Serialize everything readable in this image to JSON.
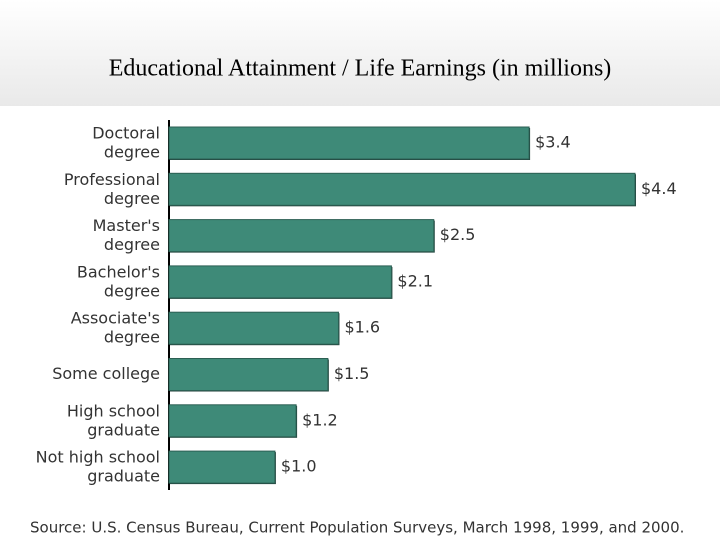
{
  "chart_data": {
    "type": "bar",
    "orientation": "horizontal",
    "title": "Educational Attainment / Life Earnings (in millions)",
    "categories": [
      "Doctoral\ndegree",
      "Professional\ndegree",
      "Master's\ndegree",
      "Bachelor's\ndegree",
      "Associate's\ndegree",
      "Some  college",
      "High school\ngraduate",
      "Not high school\ngraduate"
    ],
    "values": [
      3.4,
      4.4,
      2.5,
      2.1,
      1.6,
      1.5,
      1.2,
      1.0
    ],
    "value_labels": [
      "$3.4",
      "$4.4",
      "$2.5",
      "$2.1",
      "$1.6",
      "$1.5",
      "$1.2",
      "$1.0"
    ],
    "color": "#3e8a78",
    "xlim": [
      0,
      4.4
    ],
    "source": "Source: U.S. Census Bureau, Current Population Surveys, March 1998, 1999, and 2000."
  }
}
